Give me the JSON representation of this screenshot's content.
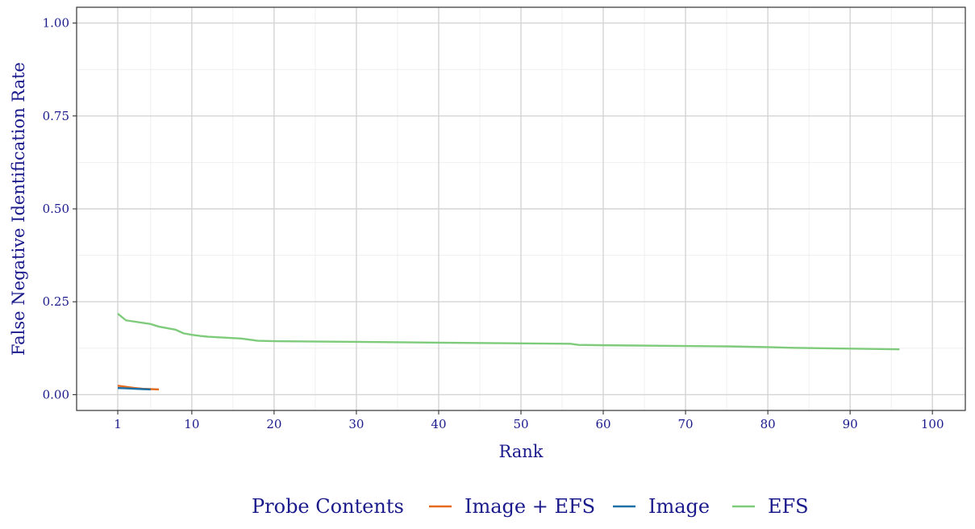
{
  "chart_data": {
    "type": "line",
    "title": "",
    "xlabel": "Rank",
    "ylabel": "False Negative Identification Rate",
    "xlim": [
      -4,
      104
    ],
    "ylim": [
      -0.0425,
      1.0425
    ],
    "x_ticks": [
      1,
      10,
      20,
      30,
      40,
      50,
      60,
      70,
      80,
      90,
      100
    ],
    "x_tick_labels": [
      "1",
      "10",
      "20",
      "30",
      "40",
      "50",
      "60",
      "70",
      "80",
      "90",
      "100"
    ],
    "x_minor_gridlines": [
      5,
      15,
      25,
      35,
      45,
      55,
      65,
      75,
      85,
      95
    ],
    "y_ticks": [
      0,
      0.25,
      0.5,
      0.75,
      1.0
    ],
    "y_tick_labels": [
      "0.00",
      "0.25",
      "0.50",
      "0.75",
      "1.00"
    ],
    "y_minor_gridlines": [
      0.125,
      0.375,
      0.625,
      0.875
    ],
    "grid": true,
    "legend": {
      "title": "Probe Contents",
      "position": "bottom",
      "entries": [
        "Image + EFS",
        "Image",
        "EFS"
      ]
    },
    "series": [
      {
        "name": "Image + EFS",
        "color": "#e66a1c",
        "x": [
          1,
          2,
          3,
          4,
          5,
          6
        ],
        "y": [
          0.024,
          0.021,
          0.018,
          0.016,
          0.015,
          0.014
        ]
      },
      {
        "name": "Image",
        "color": "#1d70a6",
        "x": [
          1,
          2,
          3,
          4,
          5
        ],
        "y": [
          0.018,
          0.017,
          0.016,
          0.015,
          0.014
        ]
      },
      {
        "name": "EFS",
        "color": "#7ecb7b",
        "x": [
          1,
          2,
          5,
          6,
          8,
          9,
          10,
          11,
          12,
          16,
          18,
          20,
          30,
          40,
          50,
          56,
          57,
          60,
          70,
          75,
          80,
          83,
          90,
          96
        ],
        "y": [
          0.218,
          0.2,
          0.19,
          0.183,
          0.175,
          0.165,
          0.161,
          0.158,
          0.156,
          0.151,
          0.145,
          0.144,
          0.142,
          0.14,
          0.138,
          0.137,
          0.134,
          0.133,
          0.131,
          0.13,
          0.128,
          0.126,
          0.124,
          0.122
        ]
      }
    ]
  }
}
